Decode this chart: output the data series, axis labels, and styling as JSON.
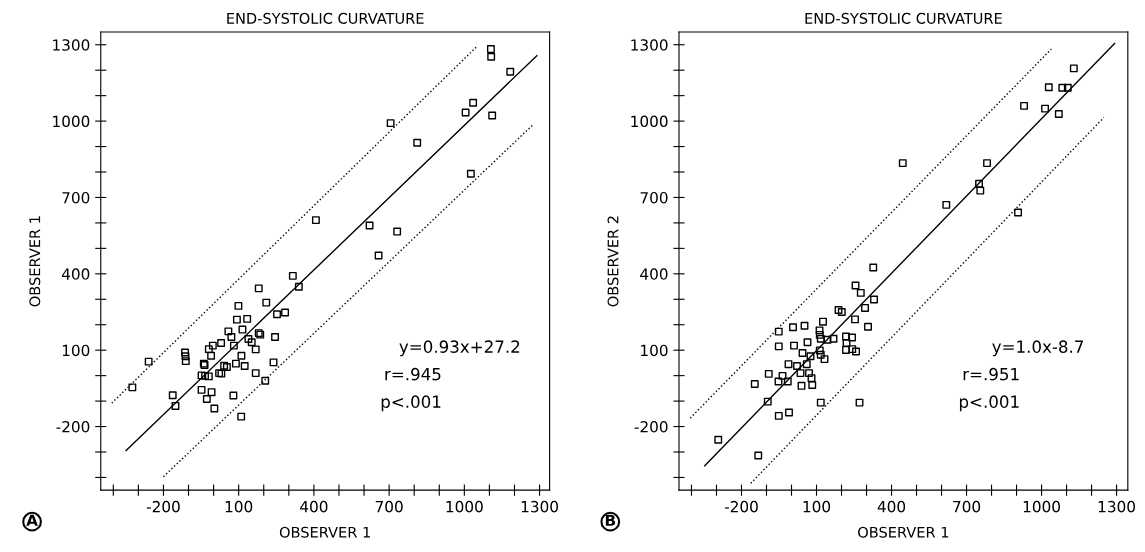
{
  "chart_data": [
    {
      "type": "scatter",
      "title": "END-SYSTOLIC CURVATURE",
      "xlabel": "OBSERVER 1",
      "ylabel": "OBSERVER 1",
      "xlim": [
        -450,
        1340
      ],
      "ylim": [
        -450,
        1350
      ],
      "xticks": [
        {
          "value": -400,
          "label": null
        },
        {
          "value": -300,
          "label": null
        },
        -200,
        {
          "value": -100,
          "label": null
        },
        {
          "value": 0,
          "label": null
        },
        100,
        {
          "value": 200,
          "label": null
        },
        {
          "value": 300,
          "label": null
        },
        400,
        {
          "value": 500,
          "label": null
        },
        {
          "value": 600,
          "label": null
        },
        700,
        {
          "value": 800,
          "label": null
        },
        {
          "value": 900,
          "label": null
        },
        1000,
        {
          "value": 1100,
          "label": null
        },
        {
          "value": 1200,
          "label": null
        },
        1300
      ],
      "yticks": [
        {
          "value": -400,
          "label": null
        },
        {
          "value": -300,
          "label": null
        },
        -200,
        {
          "value": -100,
          "label": null
        },
        {
          "value": 0,
          "label": null
        },
        100,
        {
          "value": 200,
          "label": null
        },
        {
          "value": 300,
          "label": null
        },
        400,
        {
          "value": 500,
          "label": null
        },
        {
          "value": 600,
          "label": null
        },
        700,
        {
          "value": 800,
          "label": null
        },
        {
          "value": 900,
          "label": null
        },
        1000,
        {
          "value": 1100,
          "label": null
        },
        {
          "value": 1200,
          "label": null
        },
        1300
      ],
      "annotations": [
        "y=0.93x+27.2",
        "r=.945",
        "p<.001",
        "A"
      ],
      "series": [
        {
          "type": "scatter",
          "marker": "square",
          "color": "#000000",
          "x": [
            1106,
            1107,
            1183,
            1035,
            1005,
            1111,
            706,
            812,
            1026,
            408,
            622,
            732,
            658,
            316,
            340,
            180,
            210,
            99,
            285,
            253,
            93,
            134,
            59,
            115,
            71,
            180,
            186,
            245,
            139,
            152,
            81,
            168,
            30,
            -3,
            -19,
            -10,
            111,
            89,
            124,
            239,
            168,
            206,
            42,
            53,
            22,
            31,
            -39,
            -36,
            -114,
            -112,
            -111,
            -259,
            -324,
            -48,
            -34,
            -19,
            -48,
            -8,
            -27,
            3,
            79,
            110,
            -163,
            -152
          ],
          "values": [
            1283,
            1253,
            1194,
            1072,
            1034,
            1022,
            992,
            915,
            793,
            611,
            590,
            566,
            472,
            392,
            349,
            343,
            287,
            274,
            248,
            241,
            220,
            223,
            174,
            181,
            152,
            167,
            161,
            152,
            144,
            131,
            118,
            103,
            128,
            118,
            104,
            78,
            78,
            47,
            38,
            52,
            10,
            -20,
            39,
            34,
            10,
            8,
            47,
            42,
            91,
            76,
            57,
            55,
            -46,
            1,
            -1,
            -3,
            -56,
            -65,
            -92,
            -129,
            -78,
            -161,
            -77,
            -119
          ]
        },
        {
          "type": "line",
          "line_style": "solid",
          "color": "#000000",
          "x": [
            -349,
            1289
          ],
          "values": [
            -294,
            1257
          ]
        },
        {
          "type": "line",
          "line_style": "dotted",
          "color": "#000000",
          "x": [
            -406,
            1053
          ],
          "values": [
            -108,
            1296
          ]
        },
        {
          "type": "line",
          "line_style": "dotted",
          "color": "#000000",
          "x": [
            -200,
            1276
          ],
          "values": [
            -397,
            988
          ]
        }
      ]
    },
    {
      "type": "scatter",
      "title": "END-SYSTOLIC CURVATURE",
      "xlabel": "OBSERVER 1",
      "ylabel": "OBSERVER 2",
      "xlim": [
        -450,
        1345
      ],
      "ylim": [
        -450,
        1350
      ],
      "xticks": [
        {
          "value": -400,
          "label": null
        },
        {
          "value": -300,
          "label": null
        },
        -200,
        {
          "value": -100,
          "label": null
        },
        {
          "value": 0,
          "label": null
        },
        100,
        {
          "value": 200,
          "label": null
        },
        {
          "value": 300,
          "label": null
        },
        400,
        {
          "value": 500,
          "label": null
        },
        {
          "value": 600,
          "label": null
        },
        700,
        {
          "value": 800,
          "label": null
        },
        {
          "value": 900,
          "label": null
        },
        1000,
        {
          "value": 1100,
          "label": null
        },
        {
          "value": 1200,
          "label": null
        },
        1300
      ],
      "yticks": [
        {
          "value": -400,
          "label": null
        },
        {
          "value": -300,
          "label": null
        },
        -200,
        {
          "value": -100,
          "label": null
        },
        {
          "value": 0,
          "label": null
        },
        100,
        {
          "value": 200,
          "label": null
        },
        {
          "value": 300,
          "label": null
        },
        400,
        {
          "value": 500,
          "label": null
        },
        {
          "value": 600,
          "label": null
        },
        700,
        {
          "value": 800,
          "label": null
        },
        {
          "value": 900,
          "label": null
        },
        1000,
        {
          "value": 1100,
          "label": null
        },
        {
          "value": 1200,
          "label": null
        },
        1300
      ],
      "annotations": [
        "y=1.0x-8.7",
        "r=.951",
        "p<.001",
        "B"
      ],
      "series": [
        {
          "type": "scatter",
          "marker": "square",
          "color": "#000000",
          "x": [
            1129,
            1029,
            1083,
            1105,
            930,
            1014,
            1069,
            445,
            782,
            750,
            755,
            619,
            906,
            327,
            256,
            277,
            330,
            294,
            188,
            201,
            254,
            306,
            126,
            52,
            6,
            -51,
            112,
            113,
            117,
            144,
            168,
            218,
            242,
            220,
            218,
            243,
            258,
            64,
            10,
            -51,
            44,
            113,
            117,
            132,
            76,
            -12,
            22,
            61,
            36,
            70,
            80,
            83,
            40,
            -91,
            -36,
            -52,
            -15,
            -147,
            -95,
            117,
            272,
            -51,
            -10,
            -293,
            -133
          ],
          "values": [
            1207,
            1133,
            1131,
            1131,
            1060,
            1049,
            1028,
            835,
            835,
            754,
            727,
            671,
            641,
            425,
            354,
            325,
            299,
            266,
            258,
            250,
            221,
            192,
            212,
            196,
            190,
            173,
            178,
            160,
            145,
            141,
            145,
            154,
            150,
            128,
            101,
            104,
            95,
            131,
            118,
            115,
            89,
            99,
            82,
            65,
            76,
            45,
            38,
            45,
            10,
            10,
            -10,
            -37,
            -40,
            7,
            -1,
            -23,
            -23,
            -33,
            -102,
            -106,
            -106,
            -158,
            -145,
            -252,
            -314
          ]
        },
        {
          "type": "line",
          "line_style": "solid",
          "color": "#000000",
          "x": [
            -347,
            1292
          ],
          "values": [
            -354,
            1305
          ]
        },
        {
          "type": "line",
          "line_style": "dotted",
          "color": "#000000",
          "x": [
            -405,
            1039
          ],
          "values": [
            -167,
            1283
          ]
        },
        {
          "type": "line",
          "line_style": "dotted",
          "color": "#000000",
          "x": [
            -163,
            1249
          ],
          "values": [
            -423,
            1014
          ]
        }
      ]
    }
  ]
}
